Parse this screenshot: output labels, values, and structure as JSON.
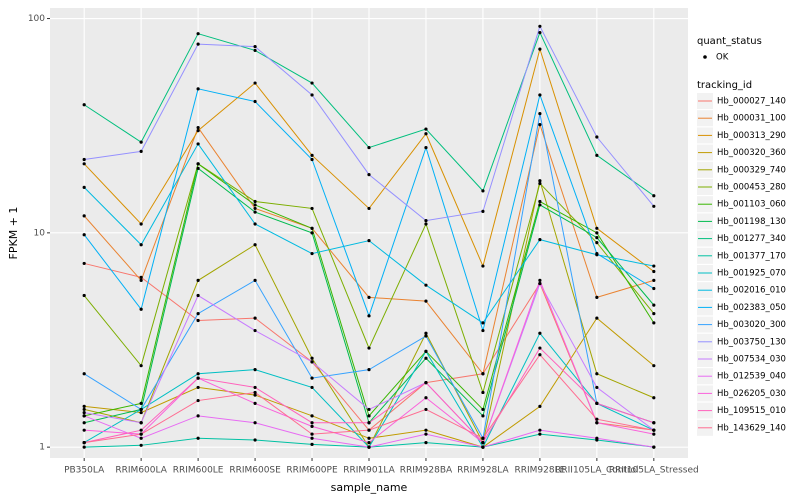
{
  "chart_data": {
    "type": "line",
    "x_label": "sample_name",
    "y_label": "FPKM + 1",
    "yscale": "log",
    "ylim": [
      0.89,
      112
    ],
    "yticks": [
      1,
      10,
      100
    ],
    "grid": true,
    "point_color": "#000000",
    "legend_point_title": "quant_status",
    "legend_point_label": "OK",
    "legend_title": "tracking_id",
    "legend_position": "right",
    "categories": [
      "PB350LA",
      "RRIM600LA",
      "RRIM600LE",
      "RRIM600SE",
      "RRIM600PE",
      "RRIM901LA",
      "RRIM928BA",
      "RRIM928LA",
      "RRIM928LE",
      "RRII105LA_Control",
      "RRII105LA_Stressed"
    ],
    "series": [
      {
        "name": "Hb_000027_140",
        "color": "#F8766D",
        "values": [
          7.2,
          6.2,
          3.9,
          4.0,
          2.5,
          1.2,
          2.0,
          2.2,
          5.8,
          1.3,
          1.2
        ]
      },
      {
        "name": "Hb_000031_100",
        "color": "#EA8331",
        "values": [
          12,
          6,
          31,
          13,
          10.5,
          5,
          4.8,
          2.2,
          32,
          5,
          6
        ]
      },
      {
        "name": "Hb_000313_290",
        "color": "#D89000",
        "values": [
          21,
          11,
          30,
          50,
          23,
          13,
          29,
          7,
          72,
          10.5,
          6.6
        ]
      },
      {
        "name": "Hb_000320_360",
        "color": "#C09B00",
        "values": [
          1.55,
          1.45,
          1.9,
          1.75,
          1.4,
          1.1,
          1.2,
          1.0,
          1.55,
          4,
          2.4
        ]
      },
      {
        "name": "Hb_000329_740",
        "color": "#A3A500",
        "values": [
          1.5,
          1.3,
          6,
          8.8,
          2.6,
          1.0,
          3.4,
          1.05,
          17.5,
          2.2,
          1.7
        ]
      },
      {
        "name": "Hb_000453_280",
        "color": "#7CAE00",
        "values": [
          5.1,
          2.4,
          21,
          14,
          13,
          2.9,
          11,
          1.8,
          17,
          9,
          4.2
        ]
      },
      {
        "name": "Hb_001103_060",
        "color": "#39B600",
        "values": [
          1.4,
          1.6,
          21,
          13.5,
          10.5,
          1.4,
          2.8,
          1.5,
          14,
          10,
          3.8
        ]
      },
      {
        "name": "Hb_001198_130",
        "color": "#00BB4E",
        "values": [
          1.3,
          1.5,
          20,
          12.5,
          10,
          1.3,
          2.6,
          1.4,
          13.5,
          9.5,
          4.6
        ]
      },
      {
        "name": "Hb_001277_340",
        "color": "#00BF7D",
        "values": [
          39.6,
          26.5,
          85,
          71,
          50,
          25,
          30.5,
          15.7,
          86,
          23,
          14.9
        ]
      },
      {
        "name": "Hb_001377_170",
        "color": "#00C1A3",
        "values": [
          1.0,
          1.02,
          1.1,
          1.08,
          1.03,
          1.0,
          1.05,
          1.0,
          1.15,
          1.08,
          1.0
        ]
      },
      {
        "name": "Hb_001925_070",
        "color": "#00BFC4",
        "values": [
          1.05,
          1.5,
          2.2,
          2.3,
          1.9,
          1.0,
          2.8,
          1.0,
          3.4,
          1.6,
          1.2
        ]
      },
      {
        "name": "Hb_002016_010",
        "color": "#00BAE0",
        "values": [
          16.3,
          8.8,
          26,
          11,
          8,
          9.2,
          5.7,
          3.8,
          9.3,
          7.9,
          7
        ]
      },
      {
        "name": "Hb_002383_050",
        "color": "#00B0F6",
        "values": [
          9.8,
          4.4,
          47,
          41,
          22,
          4.1,
          25,
          3.5,
          44,
          8,
          5.5
        ]
      },
      {
        "name": "Hb_003020_300",
        "color": "#35A2FF",
        "values": [
          2.2,
          1.5,
          4.2,
          6,
          2.1,
          2.3,
          3.3,
          1.1,
          36,
          1.6,
          1.3
        ]
      },
      {
        "name": "Hb_003750_130",
        "color": "#9590FF",
        "values": [
          22,
          24,
          76,
          74,
          44,
          18.7,
          11.4,
          12.6,
          92,
          28,
          13.3
        ]
      },
      {
        "name": "Hb_007534_030",
        "color": "#C77CFF",
        "values": [
          1.45,
          1.3,
          5.1,
          3.5,
          2.5,
          1.5,
          2.0,
          1.05,
          5.8,
          1.9,
          1.2
        ]
      },
      {
        "name": "Hb_012539_040",
        "color": "#E76BF3",
        "values": [
          1.4,
          1.1,
          1.4,
          1.3,
          1.1,
          1.0,
          1.15,
          1.0,
          1.2,
          1.1,
          1.0
        ]
      },
      {
        "name": "Hb_026205_030",
        "color": "#FA62DB",
        "values": [
          1.2,
          1.15,
          2.1,
          1.6,
          1.25,
          1.05,
          1.7,
          1.05,
          6,
          1.3,
          1.15
        ]
      },
      {
        "name": "Hb_109515_010",
        "color": "#FF62BC",
        "values": [
          1.05,
          1.2,
          2.1,
          1.9,
          1.3,
          1.3,
          2.0,
          1.05,
          2.9,
          1.6,
          1.3
        ]
      },
      {
        "name": "Hb_143629_140",
        "color": "#FF6C91",
        "values": [
          1.05,
          1.15,
          1.65,
          1.8,
          1.15,
          1.2,
          1.5,
          1.1,
          2.7,
          1.35,
          1.2
        ]
      }
    ]
  }
}
